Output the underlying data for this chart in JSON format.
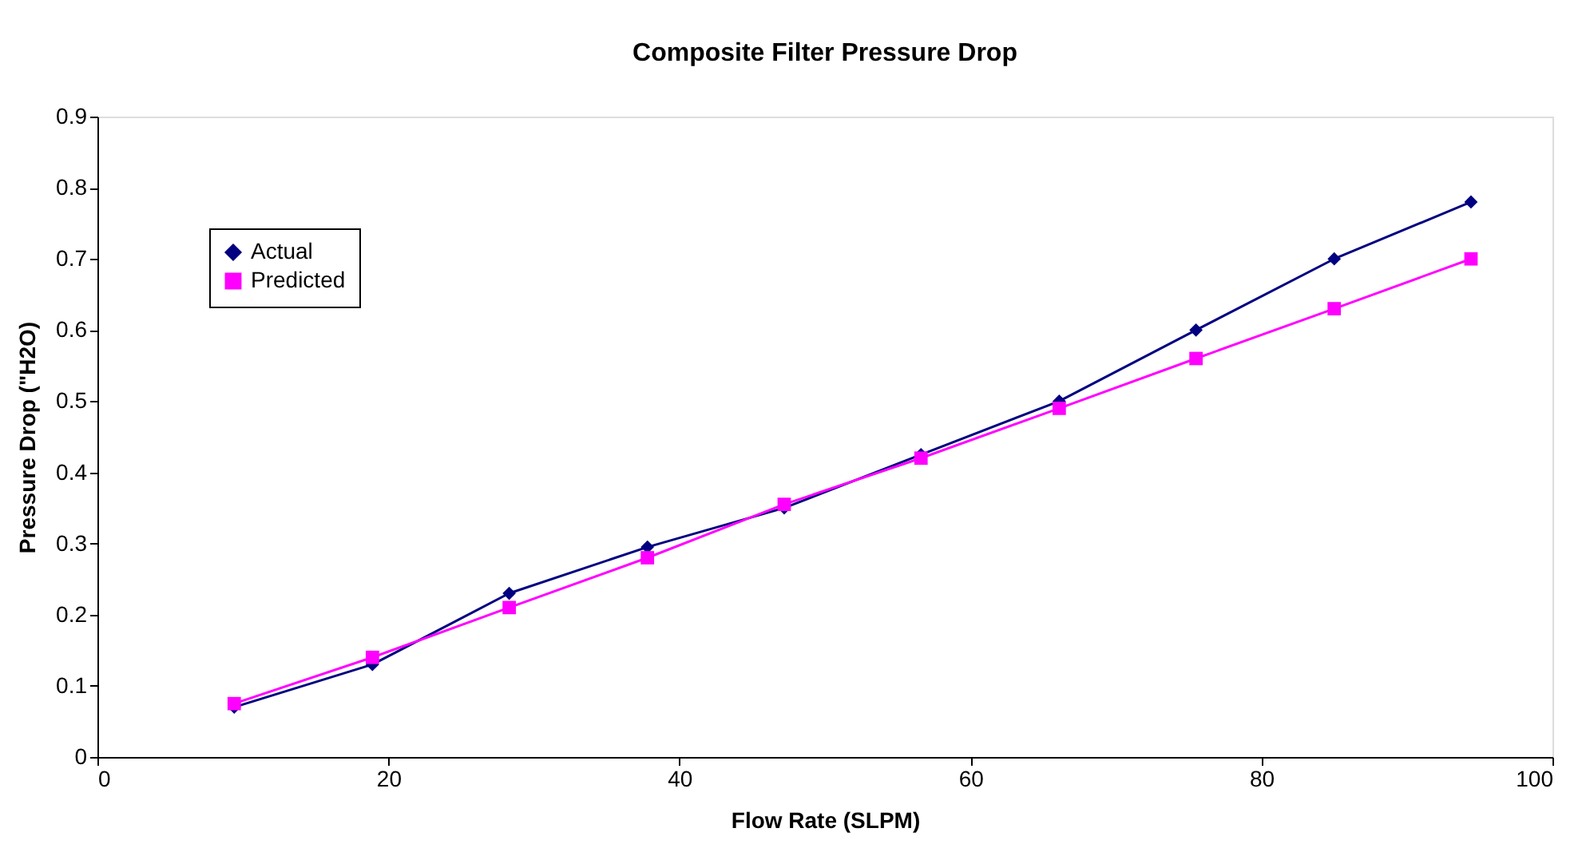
{
  "chart_data": {
    "type": "line",
    "title": "Composite Filter Pressure Drop",
    "xlabel": "Flow Rate (SLPM)",
    "ylabel": "Pressure Drop (\"H2O)",
    "x": [
      9.4,
      18.9,
      28.3,
      37.8,
      47.2,
      56.6,
      66.1,
      75.5,
      85,
      94.4
    ],
    "series": [
      {
        "name": "Actual",
        "color": "#000080",
        "marker": "diamond",
        "values": [
          0.07,
          0.13,
          0.23,
          0.295,
          0.35,
          0.425,
          0.5,
          0.6,
          0.7,
          0.78
        ]
      },
      {
        "name": "Predicted",
        "color": "#ff00ff",
        "marker": "square",
        "values": [
          0.075,
          0.14,
          0.21,
          0.28,
          0.355,
          0.42,
          0.49,
          0.56,
          0.63,
          0.7
        ]
      }
    ],
    "xlim": [
      0,
      100
    ],
    "xticks": [
      0,
      20,
      40,
      60,
      80,
      100
    ],
    "ylim": [
      0,
      0.9
    ],
    "yticks": [
      {
        "value": 0,
        "label": "0"
      },
      0.1,
      0.2,
      0.3,
      0.4,
      0.5,
      0.6,
      0.7,
      0.8,
      0.9
    ],
    "grid": false,
    "legend": "top left",
    "line_style": "solid"
  }
}
